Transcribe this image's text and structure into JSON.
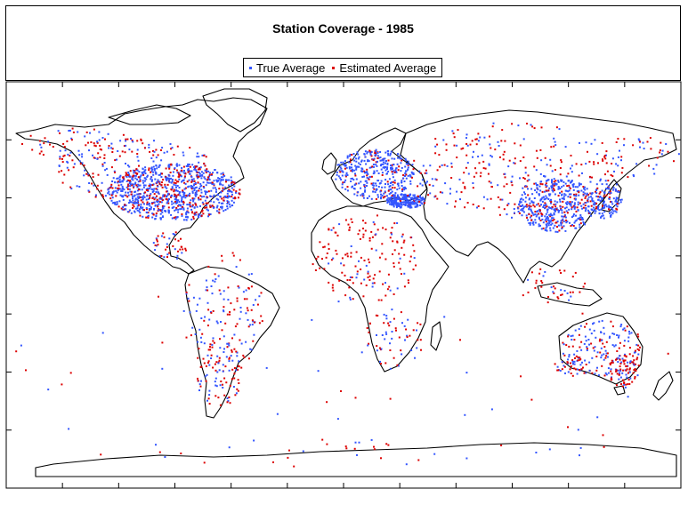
{
  "title": "Station Coverage - 1985",
  "legend": [
    {
      "label": "True Average",
      "color": "#3355ff"
    },
    {
      "label": "Estimated Average",
      "color": "#dd0000"
    }
  ],
  "colors": {
    "land_outline": "#000000",
    "ocean": "#ffffff",
    "true_avg": "#3355ff",
    "est_avg": "#dd0000"
  },
  "map": {
    "projection": "equirectangular",
    "extent": "world",
    "left_ticks": 6,
    "bottom_ticks": 11
  }
}
